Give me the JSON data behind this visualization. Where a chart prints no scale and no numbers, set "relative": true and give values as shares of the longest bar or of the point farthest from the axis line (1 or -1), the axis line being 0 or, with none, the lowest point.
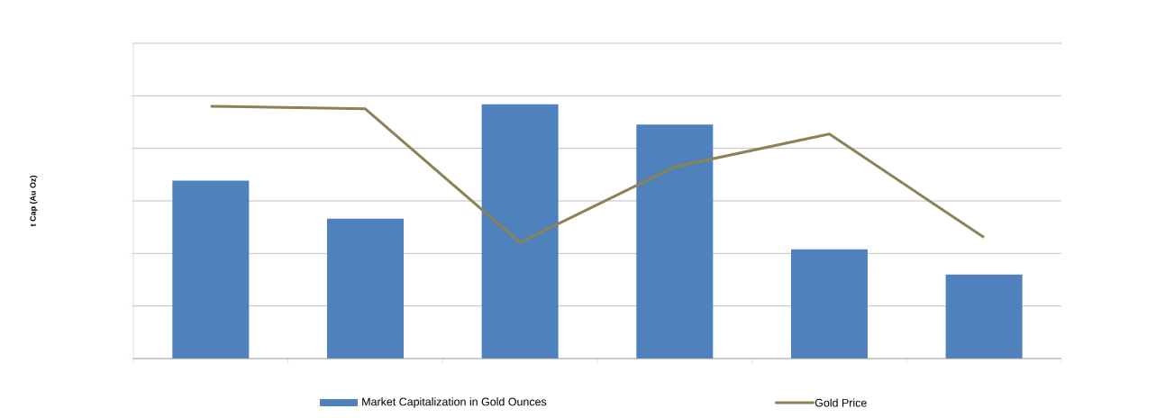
{
  "chart_data": [
    {
      "type": "bar",
      "relative": true,
      "ylabel": "t Cap (Au Oz)",
      "grid": "y",
      "legend": "bottom",
      "categories": [
        null,
        null,
        null,
        null,
        null,
        null
      ],
      "series": [
        {
          "name": "Market Capitalization in Gold Ounces",
          "color": "#4f81bd",
          "values": [
            0.7,
            0.55,
            1.0,
            0.92,
            0.43,
            0.33
          ]
        }
      ]
    },
    {
      "type": "line",
      "relative": true,
      "legend": "bottom",
      "categories": [
        null,
        null,
        null,
        null,
        null,
        null
      ],
      "series": [
        {
          "name": "Gold Price",
          "color": "#8b8356",
          "values": [
            1.0,
            0.99,
            0.46,
            0.76,
            0.89,
            0.48
          ]
        }
      ]
    }
  ]
}
